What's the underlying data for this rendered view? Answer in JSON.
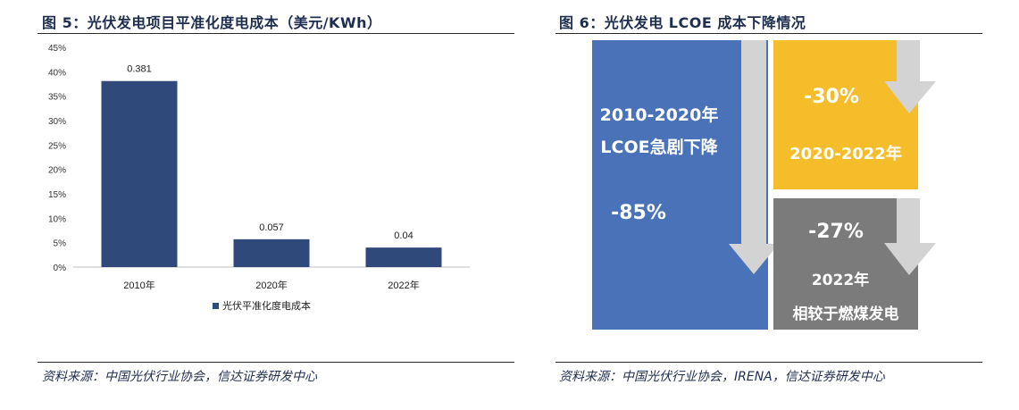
{
  "figure5": {
    "title": "图 5：光伏发电项目平准化度电成本（美元/KWh）",
    "source": "资料来源：中国光伏行业协会，信达证券研发中心"
  },
  "figure6": {
    "title": "图 6：光伏发电 LCOE 成本下降情况",
    "source": "资料来源：中国光伏行业协会，IRENA，信达证券研发中心",
    "blue_panel": {
      "line1": "2010-2020年",
      "line2": "LCOE急剧下降",
      "pct": "-85%"
    },
    "yellow_panel": {
      "pct": "-30%",
      "line1": "2020-2022年"
    },
    "gray_panel": {
      "pct": "-27%",
      "line1": "2022年",
      "line2": "相较于燃煤发电"
    },
    "colors": {
      "blue": "#4a72b8",
      "yellow": "#f6bd2b",
      "gray": "#7b7b7b",
      "arrow": "#d3d3d3"
    }
  },
  "chart_data": {
    "type": "bar",
    "categories": [
      "2010年",
      "2020年",
      "2022年"
    ],
    "series": [
      {
        "name": "光伏平准化度电成本",
        "values": [
          0.381,
          0.057,
          0.04
        ],
        "data_labels": [
          "0.381",
          "0.057",
          "0.04"
        ]
      }
    ],
    "yticks": [
      "0%",
      "5%",
      "10%",
      "15%",
      "20%",
      "25%",
      "30%",
      "35%",
      "40%",
      "45%"
    ],
    "ylim": [
      0,
      0.45
    ],
    "grid": false,
    "legend": "bottom",
    "bar_color": "#2f4a7a"
  }
}
